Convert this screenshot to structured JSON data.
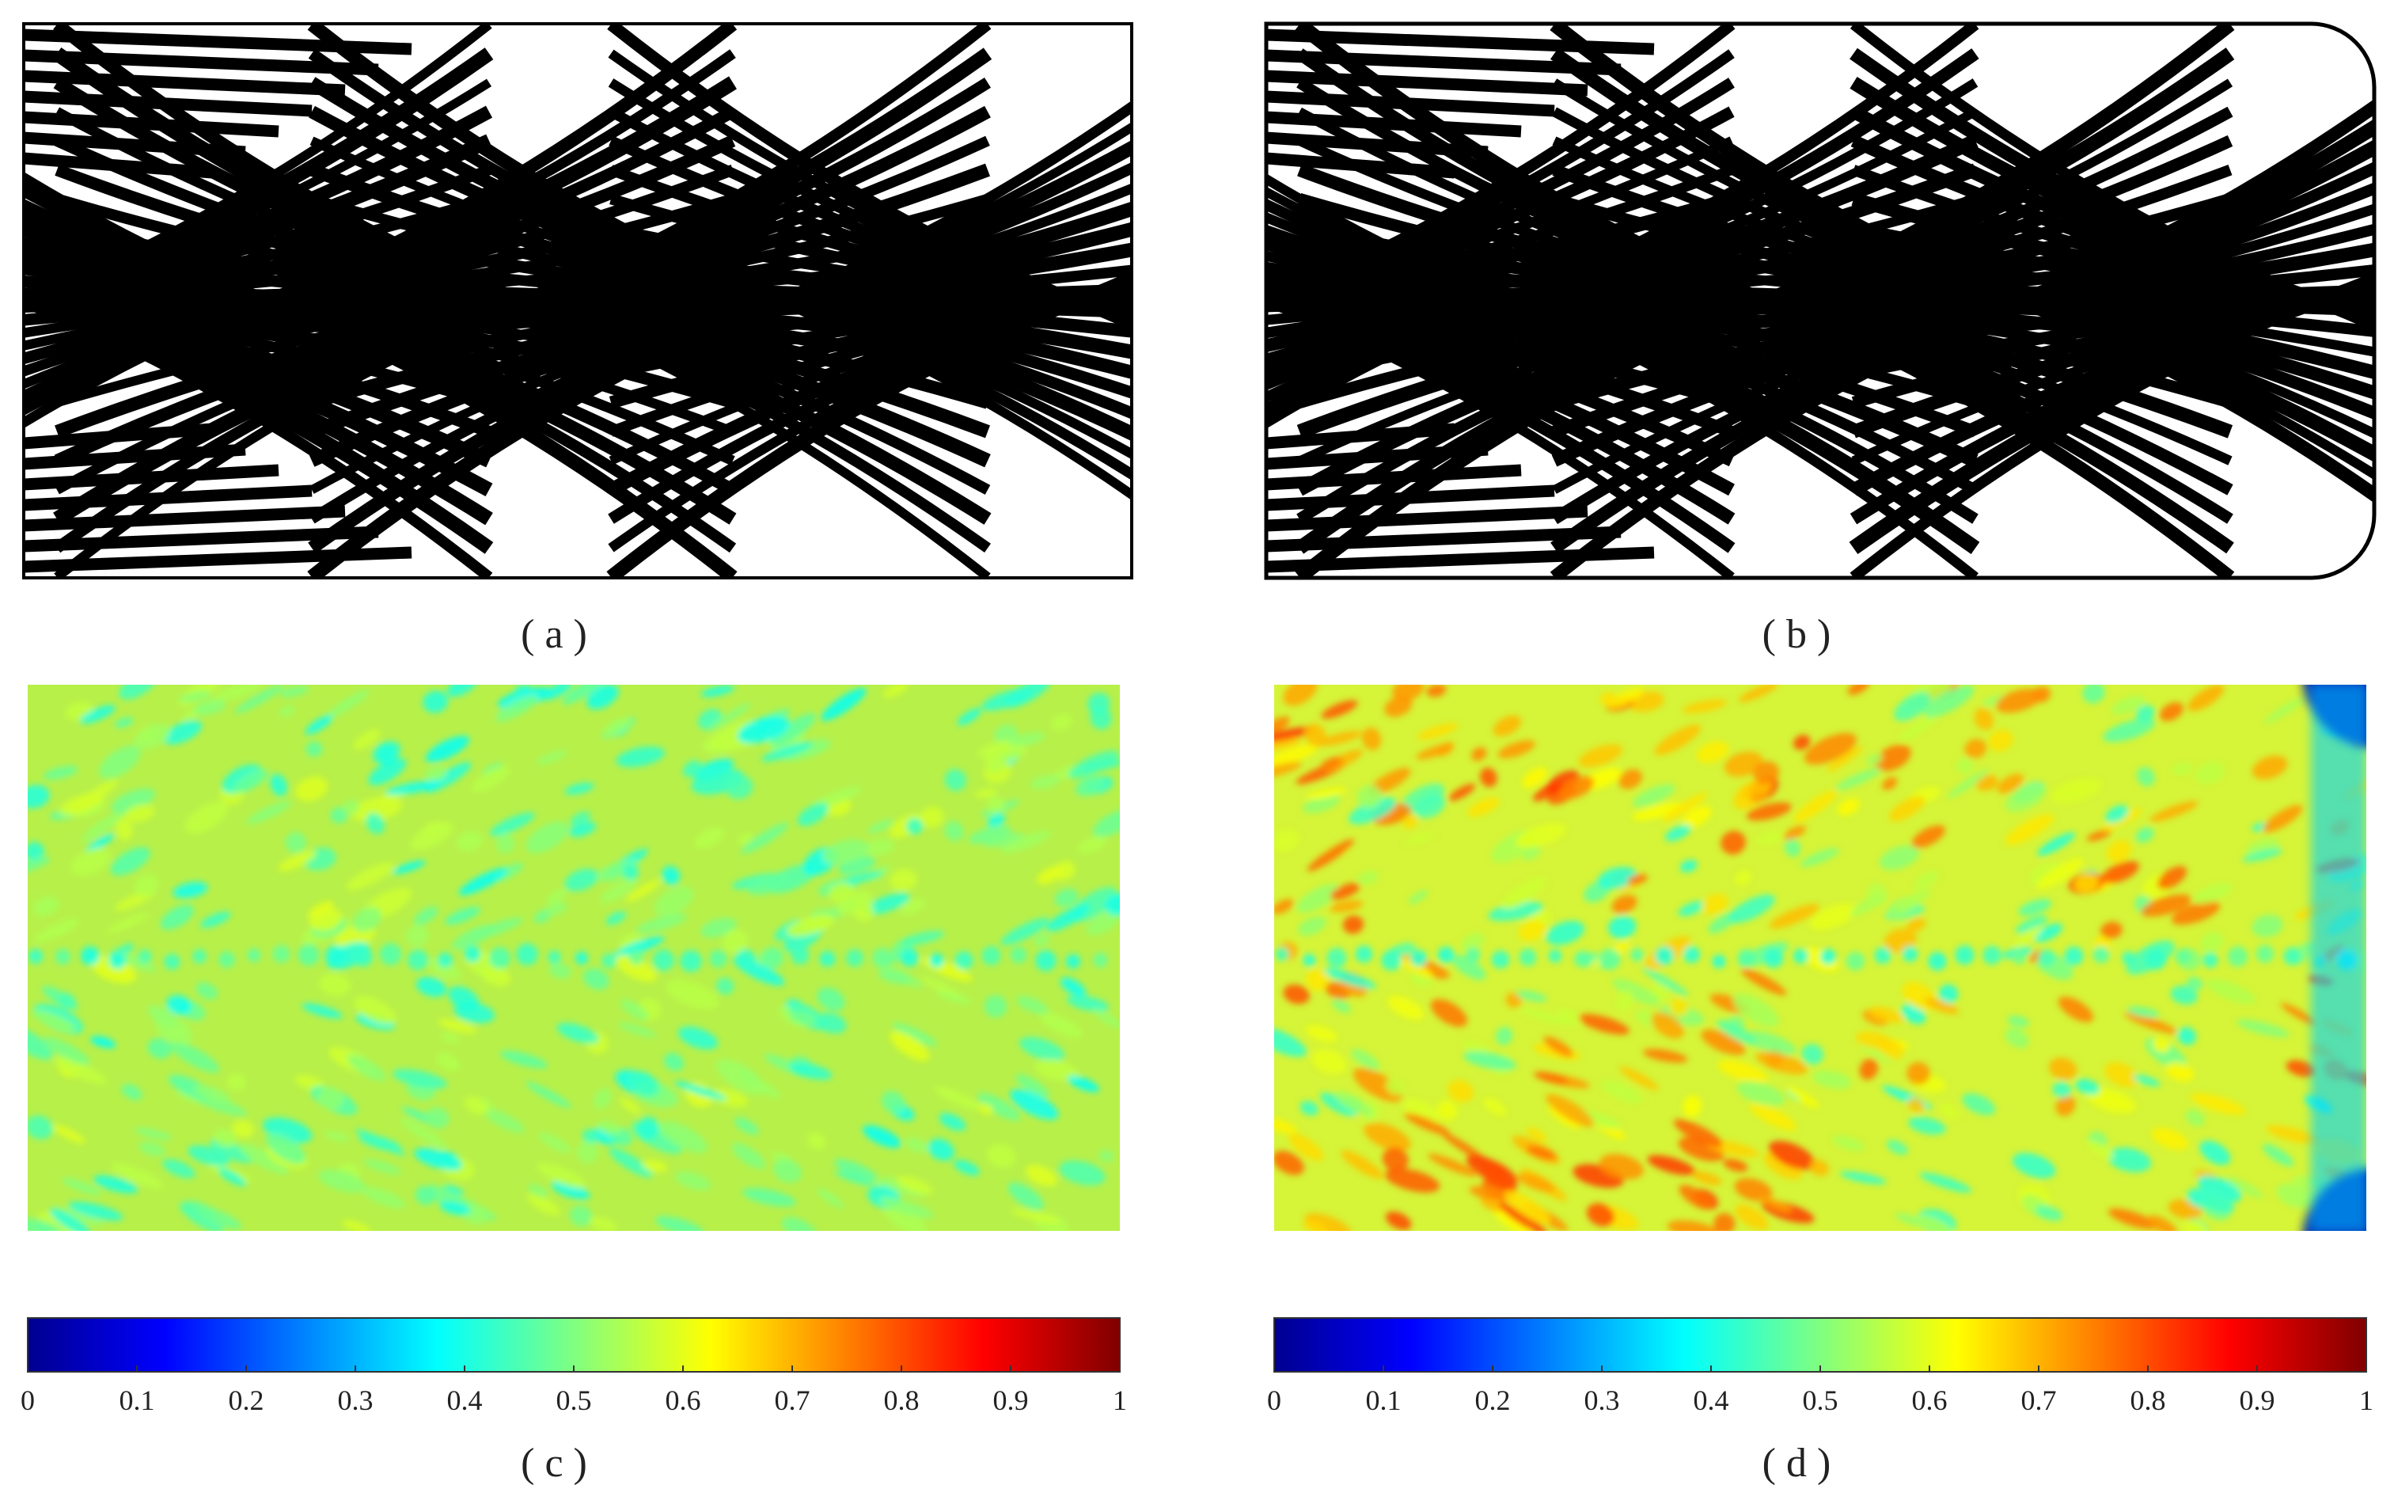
{
  "figure": {
    "panels": [
      {
        "id": "a",
        "caption": "( a )",
        "kind": "layout",
        "corners": "square",
        "background": "#ffffff",
        "ink": "#000000"
      },
      {
        "id": "b",
        "caption": "( b )",
        "kind": "layout",
        "corners": "rounded-right",
        "background": "#ffffff",
        "ink": "#000000"
      },
      {
        "id": "c",
        "caption": "( c )",
        "kind": "field",
        "palette": "jet",
        "dominant_value": 0.55
      },
      {
        "id": "d",
        "caption": "( d )",
        "kind": "field",
        "palette": "jet",
        "dominant_value": 0.6
      }
    ],
    "colorbar": {
      "palette": "jet",
      "stops": [
        "#00008f",
        "#0000ff",
        "#0080ff",
        "#00ffff",
        "#80ff80",
        "#ffff00",
        "#ff8000",
        "#ff0000",
        "#800000"
      ]
    }
  },
  "chart_data": [
    {
      "type": "heatmap",
      "title": "",
      "caption": "( c )",
      "colorbar_range": [
        0,
        1
      ],
      "colorbar_ticks": [
        "0",
        "0.1",
        "0.2",
        "0.3",
        "0.4",
        "0.5",
        "0.6",
        "0.7",
        "0.8",
        "0.9",
        "1"
      ],
      "typical_value_range": [
        0.4,
        0.6
      ],
      "grid": false
    },
    {
      "type": "heatmap",
      "title": "",
      "caption": "( d )",
      "colorbar_range": [
        0,
        1
      ],
      "colorbar_ticks": [
        "0",
        "0.1",
        "0.2",
        "0.3",
        "0.4",
        "0.5",
        "0.6",
        "0.7",
        "0.8",
        "0.9",
        "1"
      ],
      "typical_value_range": [
        0.3,
        0.85
      ],
      "grid": false
    }
  ]
}
